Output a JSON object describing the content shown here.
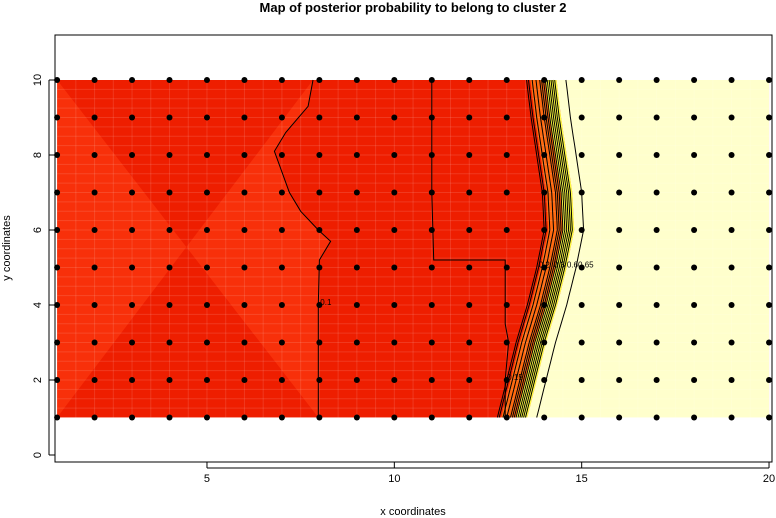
{
  "chart_data": {
    "type": "heatmap",
    "title": "Map of posterior probability to belong to cluster  2",
    "xlabel": "x coordinates",
    "ylabel": "y coordinates",
    "xlim": [
      1,
      20
    ],
    "ylim": [
      0,
      11
    ],
    "x_ticks": [
      5,
      10,
      15,
      20
    ],
    "y_ticks": [
      0,
      2,
      4,
      6,
      8,
      10
    ],
    "x_grid": [
      1,
      2,
      3,
      4,
      5,
      6,
      7,
      8,
      9,
      10,
      11,
      12,
      13,
      14,
      15,
      16,
      17,
      18,
      19,
      20
    ],
    "y_grid": [
      1,
      2,
      3,
      4,
      5,
      6,
      7,
      8,
      9,
      10
    ],
    "colors": {
      "low_left": "#F8300A",
      "low_mid": "#EE1E00",
      "transition": "#FF6A10",
      "mid_high": "#FFFF40",
      "high": "#FFFFCC",
      "points": "#000000",
      "contour": "#000000"
    },
    "transition_curve": {
      "y": [
        1,
        2,
        3,
        4,
        5,
        6,
        7,
        8,
        9,
        10
      ],
      "x": [
        13.2,
        13.45,
        13.7,
        14.0,
        14.25,
        14.45,
        14.4,
        14.25,
        14.1,
        13.98
      ]
    },
    "contours": [
      {
        "level": "0.1",
        "points": [
          [
            7.83,
            10
          ],
          [
            7.7,
            9.3
          ],
          [
            7.1,
            8.6
          ],
          [
            6.8,
            8.1
          ],
          [
            7.2,
            7.0
          ],
          [
            7.5,
            6.5
          ],
          [
            7.97,
            6.0
          ],
          [
            8.3,
            5.7
          ],
          [
            8.0,
            5.2
          ],
          [
            7.97,
            4.0
          ],
          [
            7.97,
            1.0
          ]
        ]
      },
      {
        "level": "0.15",
        "points": [
          [
            11.0,
            10
          ],
          [
            11.0,
            7.0
          ],
          [
            11.05,
            5.2
          ],
          [
            12.96,
            5.2
          ],
          [
            12.96,
            3.5
          ],
          [
            13.05,
            3.0
          ],
          [
            12.96,
            2.0
          ],
          [
            12.96,
            1.0
          ]
        ]
      },
      {
        "level": "0.2",
        "offset": -0.45
      },
      {
        "level": "0.3",
        "offset": -0.05
      },
      {
        "level": "0.6",
        "offset": 0.3
      },
      {
        "level": "0.65",
        "offset": 0.6
      }
    ]
  }
}
